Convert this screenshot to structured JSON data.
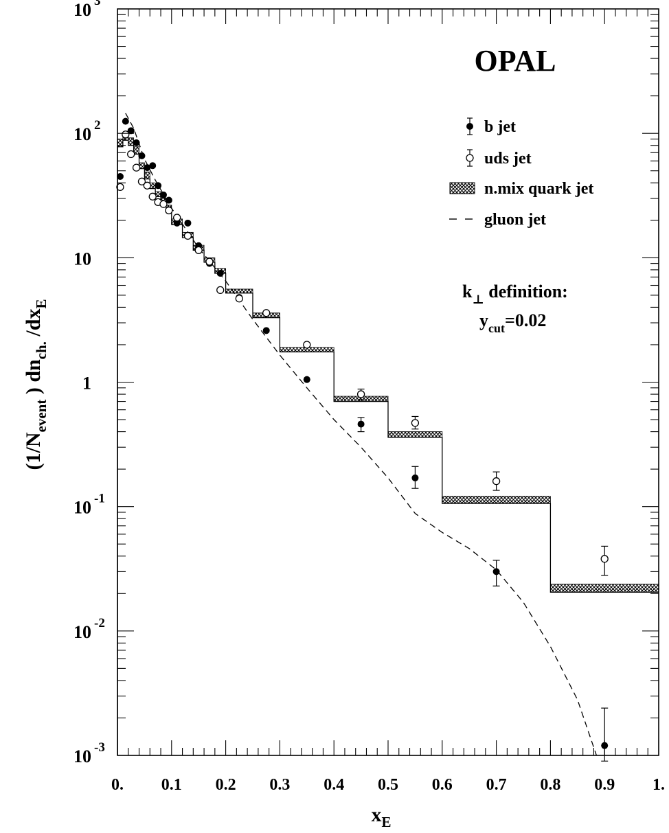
{
  "chart_data": {
    "type": "scatter",
    "title": "OPAL",
    "xlabel_main": "x",
    "xlabel_sub": "E",
    "ylabel_parts": [
      {
        "text": "(1/N",
        "sub": false
      },
      {
        "text": "event",
        "sub": true
      },
      {
        "text": " ) dn",
        "sub": false
      },
      {
        "text": "ch.",
        "sub": true
      },
      {
        "text": " /dx",
        "sub": false
      },
      {
        "text": "E",
        "sub": true
      }
    ],
    "xlim": [
      0,
      1
    ],
    "ylim": [
      0.001,
      1000
    ],
    "y_scale": "log",
    "x_ticks": [
      {
        "v": 0.0,
        "label": "0."
      },
      {
        "v": 0.1,
        "label": "0.1"
      },
      {
        "v": 0.2,
        "label": "0.2"
      },
      {
        "v": 0.3,
        "label": "0.3"
      },
      {
        "v": 0.4,
        "label": "0.4"
      },
      {
        "v": 0.5,
        "label": "0.5"
      },
      {
        "v": 0.6,
        "label": "0.6"
      },
      {
        "v": 0.7,
        "label": "0.7"
      },
      {
        "v": 0.8,
        "label": "0.8"
      },
      {
        "v": 0.9,
        "label": "0.9"
      },
      {
        "v": 1.0,
        "label": "1."
      }
    ],
    "y_ticks": [
      {
        "v": 1000,
        "base": "10",
        "exp": "3"
      },
      {
        "v": 100,
        "base": "10",
        "exp": "2"
      },
      {
        "v": 10,
        "base": "10",
        "exp": ""
      },
      {
        "v": 1,
        "base": "1",
        "exp": ""
      },
      {
        "v": 0.1,
        "base": "10",
        "exp": "-1"
      },
      {
        "v": 0.01,
        "base": "10",
        "exp": "-2"
      },
      {
        "v": 0.001,
        "base": "10",
        "exp": "-3"
      }
    ],
    "legend": [
      {
        "label": "b jet",
        "kind": "filled"
      },
      {
        "label": "uds jet",
        "kind": "open"
      },
      {
        "label": "n.mix quark jet",
        "kind": "band"
      },
      {
        "label": "gluon jet",
        "kind": "dashed"
      }
    ],
    "annotation": {
      "line1_main": "k",
      "line1_sub": "⊥",
      "line1_rest": " definition:",
      "line2_main": "y",
      "line2_sub": "cut",
      "line2_rest": "=0.02"
    },
    "series": [
      {
        "name": "b jet",
        "marker": "filled",
        "points": [
          {
            "x": 0.005,
            "y": 45
          },
          {
            "x": 0.015,
            "y": 125
          },
          {
            "x": 0.025,
            "y": 105
          },
          {
            "x": 0.035,
            "y": 84
          },
          {
            "x": 0.045,
            "y": 66
          },
          {
            "x": 0.055,
            "y": 53
          },
          {
            "x": 0.065,
            "y": 55
          },
          {
            "x": 0.075,
            "y": 38
          },
          {
            "x": 0.085,
            "y": 32
          },
          {
            "x": 0.095,
            "y": 29
          },
          {
            "x": 0.11,
            "y": 19
          },
          {
            "x": 0.13,
            "y": 19
          },
          {
            "x": 0.15,
            "y": 12.5
          },
          {
            "x": 0.17,
            "y": 9
          },
          {
            "x": 0.19,
            "y": 7.5
          },
          {
            "x": 0.225,
            "y": 4.8
          },
          {
            "x": 0.275,
            "y": 2.6
          },
          {
            "x": 0.35,
            "y": 1.05
          },
          {
            "x": 0.45,
            "y": 0.46,
            "lo": 0.4,
            "hi": 0.52
          },
          {
            "x": 0.55,
            "y": 0.17,
            "lo": 0.14,
            "hi": 0.21
          },
          {
            "x": 0.7,
            "y": 0.03,
            "lo": 0.023,
            "hi": 0.037
          },
          {
            "x": 0.9,
            "y": 0.0012,
            "lo": 0.0009,
            "hi": 0.0024
          }
        ]
      },
      {
        "name": "uds jet",
        "marker": "open",
        "points": [
          {
            "x": 0.005,
            "y": 37
          },
          {
            "x": 0.015,
            "y": 98
          },
          {
            "x": 0.025,
            "y": 68
          },
          {
            "x": 0.035,
            "y": 53
          },
          {
            "x": 0.045,
            "y": 41
          },
          {
            "x": 0.055,
            "y": 38
          },
          {
            "x": 0.065,
            "y": 31
          },
          {
            "x": 0.075,
            "y": 28
          },
          {
            "x": 0.085,
            "y": 27
          },
          {
            "x": 0.095,
            "y": 24
          },
          {
            "x": 0.11,
            "y": 21
          },
          {
            "x": 0.13,
            "y": 15
          },
          {
            "x": 0.15,
            "y": 11.5
          },
          {
            "x": 0.17,
            "y": 9.3
          },
          {
            "x": 0.19,
            "y": 5.5
          },
          {
            "x": 0.225,
            "y": 4.7
          },
          {
            "x": 0.275,
            "y": 3.6
          },
          {
            "x": 0.35,
            "y": 2.0
          },
          {
            "x": 0.45,
            "y": 0.8,
            "lo": 0.72,
            "hi": 0.88
          },
          {
            "x": 0.55,
            "y": 0.47,
            "lo": 0.42,
            "hi": 0.53
          },
          {
            "x": 0.7,
            "y": 0.16,
            "lo": 0.135,
            "hi": 0.19
          },
          {
            "x": 0.9,
            "y": 0.038,
            "lo": 0.028,
            "hi": 0.048
          }
        ]
      },
      {
        "name": "n.mix quark jet",
        "marker": "band",
        "bins": [
          {
            "x0": 0.0,
            "x1": 0.01,
            "y0": 78,
            "y1": 90
          },
          {
            "x0": 0.01,
            "x1": 0.02,
            "y0": 88,
            "y1": 100
          },
          {
            "x0": 0.02,
            "x1": 0.03,
            "y0": 80,
            "y1": 92
          },
          {
            "x0": 0.03,
            "x1": 0.04,
            "y0": 68,
            "y1": 78
          },
          {
            "x0": 0.04,
            "x1": 0.05,
            "y0": 52,
            "y1": 58
          },
          {
            "x0": 0.05,
            "x1": 0.06,
            "y0": 43,
            "y1": 49
          },
          {
            "x0": 0.06,
            "x1": 0.07,
            "y0": 36,
            "y1": 40
          },
          {
            "x0": 0.07,
            "x1": 0.08,
            "y0": 31,
            "y1": 34
          },
          {
            "x0": 0.08,
            "x1": 0.09,
            "y0": 27,
            "y1": 30
          },
          {
            "x0": 0.09,
            "x1": 0.1,
            "y0": 24,
            "y1": 26.5
          },
          {
            "x0": 0.1,
            "x1": 0.12,
            "y0": 18.5,
            "y1": 20.5
          },
          {
            "x0": 0.12,
            "x1": 0.14,
            "y0": 14.5,
            "y1": 16
          },
          {
            "x0": 0.14,
            "x1": 0.16,
            "y0": 11.5,
            "y1": 12.6
          },
          {
            "x0": 0.16,
            "x1": 0.18,
            "y0": 9.2,
            "y1": 10
          },
          {
            "x0": 0.18,
            "x1": 0.2,
            "y0": 7.5,
            "y1": 8.2
          },
          {
            "x0": 0.2,
            "x1": 0.25,
            "y0": 5.2,
            "y1": 5.6
          },
          {
            "x0": 0.25,
            "x1": 0.3,
            "y0": 3.3,
            "y1": 3.6
          },
          {
            "x0": 0.3,
            "x1": 0.4,
            "y0": 1.75,
            "y1": 1.9
          },
          {
            "x0": 0.4,
            "x1": 0.5,
            "y0": 0.7,
            "y1": 0.77
          },
          {
            "x0": 0.5,
            "x1": 0.6,
            "y0": 0.36,
            "y1": 0.4
          },
          {
            "x0": 0.6,
            "x1": 0.8,
            "y0": 0.106,
            "y1": 0.121
          },
          {
            "x0": 0.8,
            "x1": 1.0,
            "y0": 0.0205,
            "y1": 0.0238
          }
        ]
      },
      {
        "name": "gluon jet",
        "marker": "dashed",
        "points": [
          {
            "x": 0.015,
            "y": 145
          },
          {
            "x": 0.03,
            "y": 110
          },
          {
            "x": 0.05,
            "y": 62
          },
          {
            "x": 0.07,
            "y": 42
          },
          {
            "x": 0.1,
            "y": 25
          },
          {
            "x": 0.15,
            "y": 12
          },
          {
            "x": 0.2,
            "y": 6.5
          },
          {
            "x": 0.25,
            "y": 3.2
          },
          {
            "x": 0.3,
            "y": 1.65
          },
          {
            "x": 0.35,
            "y": 0.9
          },
          {
            "x": 0.4,
            "y": 0.5
          },
          {
            "x": 0.45,
            "y": 0.3
          },
          {
            "x": 0.5,
            "y": 0.17
          },
          {
            "x": 0.55,
            "y": 0.088
          },
          {
            "x": 0.6,
            "y": 0.062
          },
          {
            "x": 0.65,
            "y": 0.046
          },
          {
            "x": 0.7,
            "y": 0.031
          },
          {
            "x": 0.75,
            "y": 0.017
          },
          {
            "x": 0.8,
            "y": 0.0075
          },
          {
            "x": 0.85,
            "y": 0.0028
          },
          {
            "x": 0.885,
            "y": 0.001
          }
        ]
      }
    ]
  }
}
